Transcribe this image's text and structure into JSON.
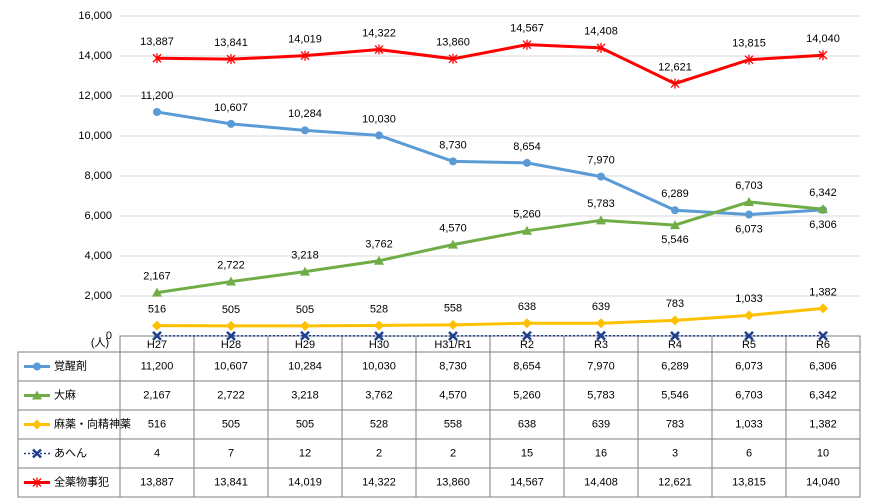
{
  "chart_data": {
    "type": "line",
    "y_unit": "(人)",
    "categories": [
      "H27",
      "H28",
      "H29",
      "H30",
      "H31/R1",
      "R2",
      "R3",
      "R4",
      "R5",
      "R6"
    ],
    "ylim": [
      0,
      16000
    ],
    "yticks": [
      0,
      {
        "value": 2000,
        "label": "2,000"
      },
      {
        "value": 4000,
        "label": "4,000"
      },
      {
        "value": 6000,
        "label": "6,000"
      },
      {
        "value": 8000,
        "label": "8,000"
      },
      {
        "value": 10000,
        "label": "10,000"
      },
      {
        "value": 12000,
        "label": "12,000"
      },
      {
        "value": 14000,
        "label": "14,000"
      },
      {
        "value": 16000,
        "label": "16,000"
      }
    ],
    "grid": true,
    "series": [
      {
        "name": "覚醒剤",
        "color": "#5b9bd5",
        "marker": "circle",
        "linestyle": "solid",
        "data_labels": true,
        "values": [
          11200,
          10607,
          10284,
          10030,
          8730,
          8654,
          7970,
          6289,
          6073,
          6306
        ],
        "value_labels": [
          "11,200",
          "10,607",
          "10,284",
          "10,030",
          "8,730",
          "8,654",
          "7,970",
          "6,289",
          "6,073",
          "6,306"
        ]
      },
      {
        "name": "大麻",
        "color": "#70ad47",
        "marker": "triangle",
        "linestyle": "solid",
        "data_labels": true,
        "values": [
          2167,
          2722,
          3218,
          3762,
          4570,
          5260,
          5783,
          5546,
          6703,
          6342
        ],
        "value_labels": [
          "2,167",
          "2,722",
          "3,218",
          "3,762",
          "4,570",
          "5,260",
          "5,783",
          "5,546",
          "6,703",
          "6,342"
        ]
      },
      {
        "name": "麻薬・向精神薬",
        "color": "#ffc000",
        "marker": "diamond",
        "linestyle": "solid",
        "data_labels": true,
        "values": [
          516,
          505,
          505,
          528,
          558,
          638,
          639,
          783,
          1033,
          1382
        ],
        "value_labels": [
          "516",
          "505",
          "505",
          "528",
          "558",
          "638",
          "639",
          "783",
          "1,033",
          "1,382"
        ]
      },
      {
        "name": "あへん",
        "color": "#1f3f8f",
        "marker": "x",
        "linestyle": "dotted",
        "data_labels": false,
        "values": [
          4,
          7,
          12,
          2,
          2,
          15,
          16,
          3,
          6,
          10
        ]
      },
      {
        "name": "全薬物事犯",
        "color": "#ff0000",
        "marker": "asterisk",
        "linestyle": "solid",
        "data_labels": true,
        "values": [
          13887,
          13841,
          14019,
          14322,
          13860,
          14567,
          14408,
          12621,
          13815,
          14040
        ],
        "value_labels": [
          "13,887",
          "13,841",
          "14,019",
          "14,322",
          "13,860",
          "14,567",
          "14,408",
          "12,621",
          "13,815",
          "14,040"
        ]
      }
    ]
  }
}
